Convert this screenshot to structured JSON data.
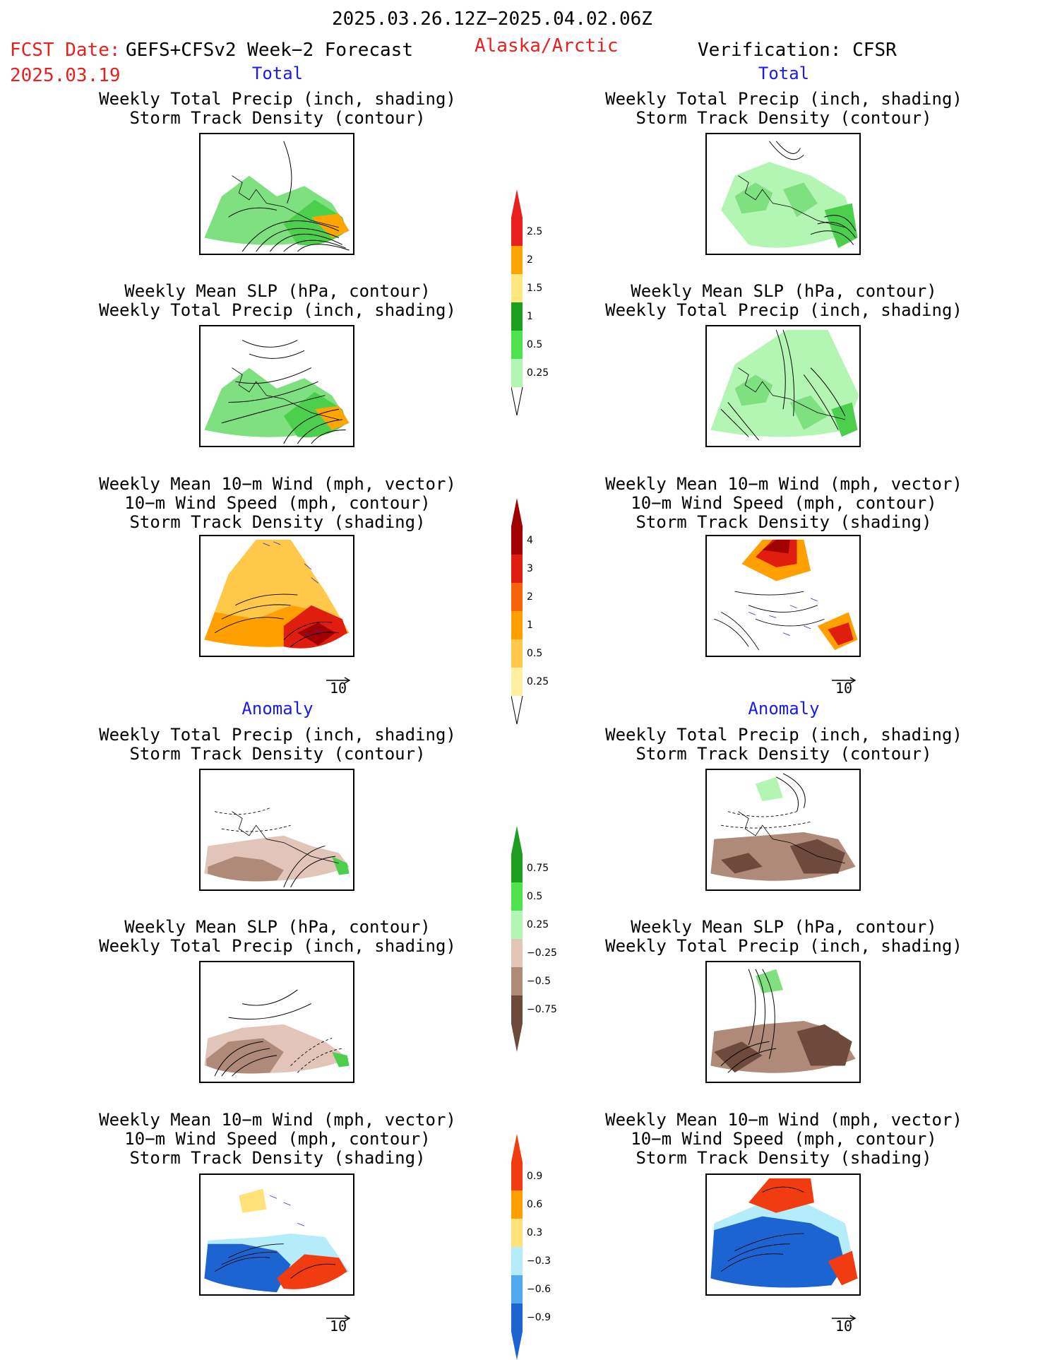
{
  "header": {
    "date_range": "2025.03.26.12Z−2025.04.02.06Z",
    "fcst_label": "FCST Date:",
    "fcst_model": "GEFS+CFSv2 Week−2 Forecast",
    "region": "Alaska/Arctic",
    "verification": "Verification: CFSR",
    "fcst_date": "2025.03.19"
  },
  "sections": {
    "total": "Total",
    "anomaly": "Anomaly"
  },
  "panel_titles": {
    "precip_storm": "Weekly Total Precip (inch, shading)\nStorm Track Density (contour)",
    "slp_precip": "Weekly Mean SLP (hPa, contour)\nWeekly Total Precip (inch, shading)",
    "wind_storm": "Weekly Mean 10−m Wind (mph, vector)\n10−m Wind Speed (mph, contour)\nStorm Track Density (shading)"
  },
  "vector_ref_label": "10",
  "colorbars": {
    "precip_total": {
      "labels": [
        "2.5",
        "2",
        "1.5",
        "1",
        "0.5",
        "0.25"
      ],
      "colors": [
        "#e8211f",
        "#ffa500",
        "#ffe680",
        "#1e9e1e",
        "#4ce34c",
        "#b3f5b3"
      ]
    },
    "storm_total": {
      "labels": [
        "4",
        "3",
        "2",
        "1",
        "0.5",
        "0.25"
      ],
      "colors": [
        "#a00000",
        "#e01e10",
        "#f5640a",
        "#ffa000",
        "#ffc848",
        "#fff0a0"
      ]
    },
    "precip_anom": {
      "labels": [
        "0.75",
        "0.5",
        "0.25",
        "−0.25",
        "−0.5",
        "−0.75"
      ],
      "colors": [
        "#1e9e1e",
        "#4ce34c",
        "#b3f5b3",
        "#e2c4b8",
        "#b08a78",
        "#6e4a3c"
      ]
    },
    "storm_anom": {
      "labels": [
        "0.9",
        "0.6",
        "0.3",
        "−0.3",
        "−0.6",
        "−0.9"
      ],
      "colors": [
        "#f03c10",
        "#ffa000",
        "#ffe27a",
        "#b4ecfa",
        "#50a8f0",
        "#1c64d2"
      ]
    }
  }
}
